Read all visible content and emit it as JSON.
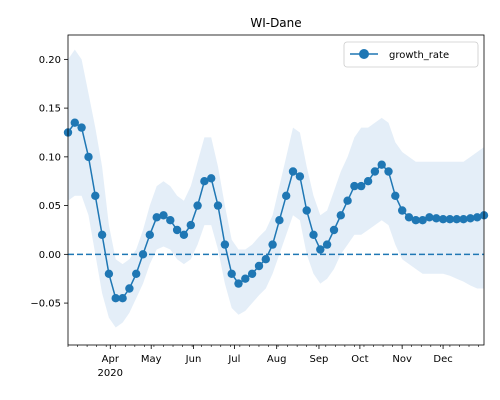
{
  "chart_data": {
    "type": "line",
    "title": "WI-Dane",
    "xlabel": "",
    "ylabel": "",
    "xlim": [
      "2020-03-01",
      "2020-12-31"
    ],
    "ylim": [
      -0.093,
      0.225
    ],
    "y_ticks": [
      -0.05,
      0.0,
      0.05,
      0.1,
      0.15,
      0.2
    ],
    "y_tick_labels": [
      "−0.05",
      "0.00",
      "0.05",
      "0.10",
      "0.15",
      "0.20"
    ],
    "x_ticks": [
      {
        "date": "2020-04-01",
        "label": "Apr",
        "sublabel": "2020"
      },
      {
        "date": "2020-05-01",
        "label": "May"
      },
      {
        "date": "2020-06-01",
        "label": "Jun"
      },
      {
        "date": "2020-07-01",
        "label": "Jul"
      },
      {
        "date": "2020-08-01",
        "label": "Aug"
      },
      {
        "date": "2020-09-01",
        "label": "Sep"
      },
      {
        "date": "2020-10-01",
        "label": "Oct"
      },
      {
        "date": "2020-11-01",
        "label": "Nov"
      },
      {
        "date": "2020-12-01",
        "label": "Dec"
      }
    ],
    "legend": {
      "position": "upper-right",
      "entries": [
        "growth_rate"
      ]
    },
    "reference_line": {
      "y": 0.0,
      "style": "dashed"
    },
    "grid": false,
    "colors": {
      "series": "#1f77b4",
      "band": "#dbe8f5"
    },
    "series": [
      {
        "name": "growth_rate",
        "x": [
          "2020-03-01",
          "2020-03-06",
          "2020-03-11",
          "2020-03-16",
          "2020-03-21",
          "2020-03-26",
          "2020-03-31",
          "2020-04-05",
          "2020-04-10",
          "2020-04-15",
          "2020-04-20",
          "2020-04-25",
          "2020-04-30",
          "2020-05-05",
          "2020-05-10",
          "2020-05-15",
          "2020-05-20",
          "2020-05-25",
          "2020-05-30",
          "2020-06-04",
          "2020-06-09",
          "2020-06-14",
          "2020-06-19",
          "2020-06-24",
          "2020-06-29",
          "2020-07-04",
          "2020-07-09",
          "2020-07-14",
          "2020-07-19",
          "2020-07-24",
          "2020-07-29",
          "2020-08-03",
          "2020-08-08",
          "2020-08-13",
          "2020-08-18",
          "2020-08-23",
          "2020-08-28",
          "2020-09-02",
          "2020-09-07",
          "2020-09-12",
          "2020-09-17",
          "2020-09-22",
          "2020-09-27",
          "2020-10-02",
          "2020-10-07",
          "2020-10-12",
          "2020-10-17",
          "2020-10-22",
          "2020-10-27",
          "2020-11-01",
          "2020-11-06",
          "2020-11-11",
          "2020-11-16",
          "2020-11-21",
          "2020-11-26",
          "2020-12-01",
          "2020-12-06",
          "2020-12-11",
          "2020-12-16",
          "2020-12-21",
          "2020-12-26",
          "2020-12-31"
        ],
        "values": [
          0.125,
          0.135,
          0.13,
          0.1,
          0.06,
          0.02,
          -0.02,
          -0.045,
          -0.045,
          -0.035,
          -0.02,
          0.0,
          0.02,
          0.038,
          0.04,
          0.035,
          0.025,
          0.02,
          0.03,
          0.05,
          0.075,
          0.078,
          0.05,
          0.01,
          -0.02,
          -0.03,
          -0.025,
          -0.02,
          -0.012,
          -0.005,
          0.01,
          0.035,
          0.06,
          0.085,
          0.08,
          0.045,
          0.02,
          0.005,
          0.01,
          0.025,
          0.04,
          0.055,
          0.07,
          0.07,
          0.075,
          0.085,
          0.092,
          0.085,
          0.06,
          0.045,
          0.038,
          0.035,
          0.035,
          0.038,
          0.037,
          0.036,
          0.036,
          0.036,
          0.036,
          0.037,
          0.038,
          0.04
        ],
        "lower": [
          0.055,
          0.06,
          0.06,
          0.04,
          0.0,
          -0.04,
          -0.065,
          -0.075,
          -0.07,
          -0.06,
          -0.045,
          -0.03,
          -0.01,
          0.005,
          0.008,
          0.005,
          -0.005,
          -0.01,
          -0.005,
          0.01,
          0.03,
          0.03,
          0.005,
          -0.03,
          -0.055,
          -0.062,
          -0.058,
          -0.05,
          -0.042,
          -0.035,
          -0.02,
          0.0,
          0.02,
          0.04,
          0.035,
          0.0,
          -0.02,
          -0.03,
          -0.025,
          -0.015,
          0.0,
          0.01,
          0.02,
          0.02,
          0.025,
          0.03,
          0.035,
          0.03,
          0.01,
          -0.005,
          -0.01,
          -0.015,
          -0.02,
          -0.02,
          -0.02,
          -0.02,
          -0.022,
          -0.025,
          -0.028,
          -0.032,
          -0.035,
          -0.035
        ],
        "upper": [
          0.2,
          0.21,
          0.2,
          0.165,
          0.13,
          0.09,
          0.03,
          -0.005,
          -0.01,
          -0.005,
          0.005,
          0.025,
          0.05,
          0.07,
          0.075,
          0.07,
          0.06,
          0.055,
          0.07,
          0.095,
          0.12,
          0.12,
          0.09,
          0.05,
          0.015,
          0.005,
          0.005,
          0.01,
          0.018,
          0.025,
          0.04,
          0.07,
          0.1,
          0.13,
          0.125,
          0.09,
          0.06,
          0.04,
          0.045,
          0.065,
          0.085,
          0.1,
          0.12,
          0.13,
          0.13,
          0.135,
          0.14,
          0.135,
          0.115,
          0.105,
          0.1,
          0.095,
          0.095,
          0.095,
          0.095,
          0.095,
          0.095,
          0.095,
          0.095,
          0.1,
          0.105,
          0.11
        ]
      }
    ]
  }
}
